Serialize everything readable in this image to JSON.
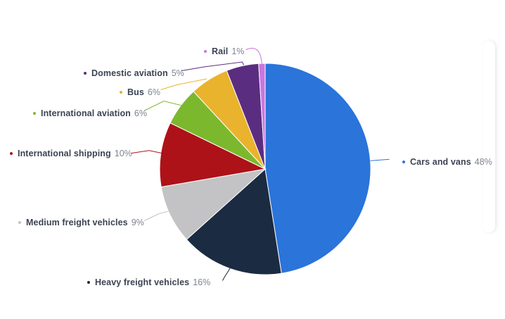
{
  "chart_data": {
    "type": "pie",
    "title": "",
    "value_suffix": "%",
    "legend_position": "outside-labels-with-connectors",
    "grid": false,
    "slices": [
      {
        "label": "Cars and vans",
        "value": 48,
        "color": "#2a74da"
      },
      {
        "label": "Heavy freight vehicles",
        "value": 16,
        "color": "#1b2b41"
      },
      {
        "label": "Medium freight vehicles",
        "value": 9,
        "color": "#c3c3c5"
      },
      {
        "label": "International shipping",
        "value": 10,
        "color": "#ad1219"
      },
      {
        "label": "International aviation",
        "value": 6,
        "color": "#7cb82e"
      },
      {
        "label": "Bus",
        "value": 6,
        "color": "#e9b32d"
      },
      {
        "label": "Domestic aviation",
        "value": 5,
        "color": "#5b2d81"
      },
      {
        "label": "Rail",
        "value": 1,
        "color": "#c877e0"
      }
    ]
  },
  "colors": {
    "label_name": "#3b4352",
    "label_value": "#7e848e",
    "background": "#ffffff"
  }
}
